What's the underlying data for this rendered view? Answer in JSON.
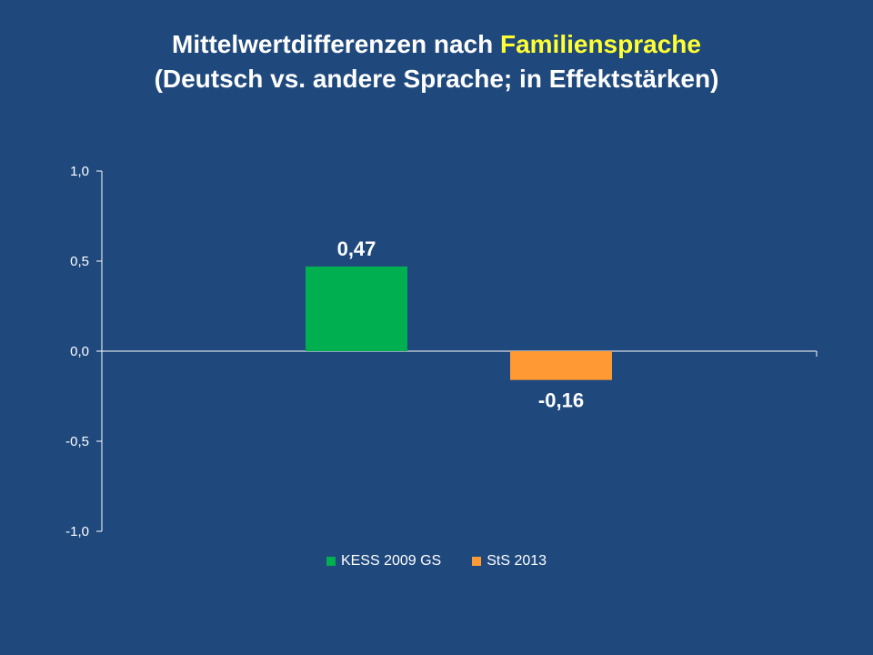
{
  "title": {
    "line1_prefix": "Mittelwertdifferenzen nach ",
    "line1_accent": "Familiensprache",
    "line2": "(Deutsch vs. andere Sprache; in Effektstärken)",
    "accent_color": "#ffff33"
  },
  "chart_data": {
    "type": "bar",
    "title": "Mittelwertdifferenzen nach Familiensprache (Deutsch vs. andere Sprache; in Effektstärken)",
    "series": [
      {
        "name": "KESS 2009 GS",
        "value": 0.47,
        "label": "0,47",
        "color": "#00b050"
      },
      {
        "name": "StS 2013",
        "value": -0.16,
        "label": "-0,16",
        "color": "#ff9933"
      }
    ],
    "ylim": [
      -1.0,
      1.0
    ],
    "yticks": [
      {
        "value": 1.0,
        "label": "1,0"
      },
      {
        "value": 0.5,
        "label": "0,5"
      },
      {
        "value": 0.0,
        "label": "0,0"
      },
      {
        "value": -0.5,
        "label": "-0,5"
      },
      {
        "value": -1.0,
        "label": "-1,0"
      }
    ],
    "grid": false,
    "legend_position": "bottom"
  },
  "colors": {
    "background": "#1f497d",
    "axis": "#ffffff"
  }
}
